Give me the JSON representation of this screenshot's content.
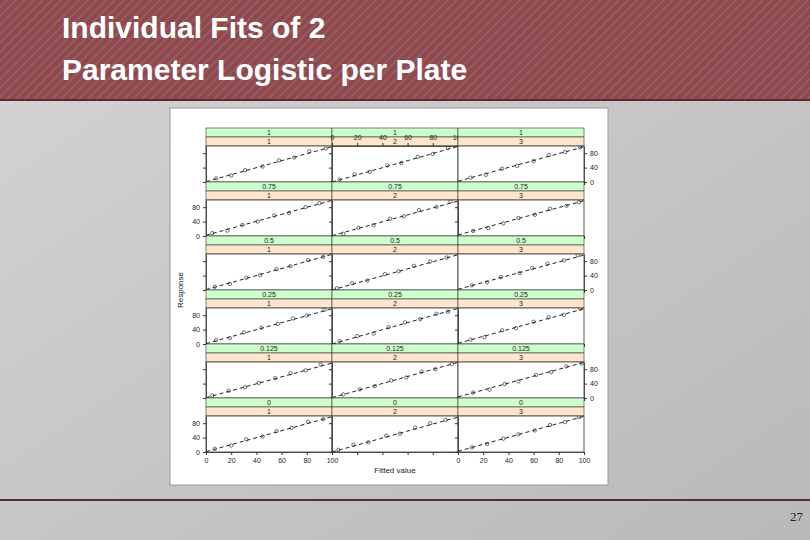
{
  "slide": {
    "title": "Individual Fits of 2 Parameter Logistic per Plate",
    "page": 27
  },
  "figure": {
    "x_label": "Fitted value",
    "y_label": "Response"
  },
  "chart_data": [
    {
      "type": "scatter",
      "title": "1",
      "subtitle": "1",
      "xlim": [
        0,
        100
      ],
      "ylim": [
        0,
        100
      ],
      "xticks": [
        0,
        20,
        40,
        60,
        80,
        100
      ],
      "yticks": [
        0,
        40,
        80
      ],
      "tick_labels": false,
      "series": [
        {
          "type": "scatter",
          "marker": "circle",
          "x": [
            8,
            20,
            31,
            45,
            58,
            70,
            82,
            95
          ],
          "values": [
            10,
            18,
            33,
            43,
            60,
            68,
            85,
            93
          ]
        },
        {
          "type": "line",
          "line_style": "dashed",
          "x": [
            0,
            100
          ],
          "values": [
            1,
            98
          ]
        }
      ]
    },
    {
      "type": "scatter",
      "title": "1",
      "subtitle": "2",
      "xlim": [
        0,
        100
      ],
      "ylim": [
        0,
        100
      ],
      "xticks": [
        0,
        20,
        40,
        60,
        80,
        100
      ],
      "yticks": [
        0,
        40,
        80
      ],
      "tick_labels": "x",
      "series": [
        {
          "type": "scatter",
          "marker": "circle",
          "x": [
            6,
            18,
            30,
            44,
            55,
            68,
            80,
            92
          ],
          "values": [
            7,
            21,
            28,
            46,
            53,
            70,
            78,
            95
          ]
        },
        {
          "type": "line",
          "line_style": "dashed",
          "x": [
            0,
            100
          ],
          "values": [
            0,
            99
          ]
        }
      ]
    },
    {
      "type": "scatter",
      "title": "1",
      "subtitle": "3",
      "xlim": [
        0,
        100
      ],
      "ylim": [
        0,
        100
      ],
      "xticks": [
        0,
        20,
        40,
        60,
        80,
        100
      ],
      "yticks": [
        0,
        40,
        80
      ],
      "tick_labels": "y",
      "series": [
        {
          "type": "scatter",
          "marker": "circle",
          "x": [
            10,
            22,
            35,
            47,
            60,
            72,
            85,
            97
          ],
          "values": [
            12,
            20,
            37,
            45,
            58,
            75,
            83,
            96
          ]
        },
        {
          "type": "line",
          "line_style": "dashed",
          "x": [
            0,
            100
          ],
          "values": [
            2,
            98
          ]
        }
      ]
    },
    {
      "type": "scatter",
      "title": "0.75",
      "subtitle": "1",
      "xlim": [
        0,
        100
      ],
      "ylim": [
        0,
        100
      ],
      "xticks": [
        0,
        20,
        40,
        60,
        80,
        100
      ],
      "yticks": [
        0,
        40,
        80
      ],
      "tick_labels": "y",
      "series": [
        {
          "type": "scatter",
          "marker": "circle",
          "x": [
            5,
            17,
            29,
            41,
            54,
            66,
            79,
            90
          ],
          "values": [
            8,
            15,
            31,
            40,
            57,
            64,
            80,
            91
          ]
        },
        {
          "type": "line",
          "line_style": "dashed",
          "x": [
            0,
            100
          ],
          "values": [
            2,
            99
          ]
        }
      ]
    },
    {
      "type": "scatter",
      "title": "0.75",
      "subtitle": "2",
      "xlim": [
        0,
        100
      ],
      "ylim": [
        0,
        100
      ],
      "xticks": [
        0,
        20,
        40,
        60,
        80,
        100
      ],
      "yticks": [
        0,
        40,
        80
      ],
      "tick_labels": false,
      "series": [
        {
          "type": "scatter",
          "marker": "circle",
          "x": [
            9,
            21,
            33,
            46,
            57,
            69,
            83,
            94
          ],
          "values": [
            6,
            23,
            30,
            48,
            55,
            72,
            81,
            96
          ]
        },
        {
          "type": "line",
          "line_style": "dashed",
          "x": [
            0,
            100
          ],
          "values": [
            1,
            97
          ]
        }
      ]
    },
    {
      "type": "scatter",
      "title": "0.75",
      "subtitle": "3",
      "xlim": [
        0,
        100
      ],
      "ylim": [
        0,
        100
      ],
      "xticks": [
        0,
        20,
        40,
        60,
        80,
        100
      ],
      "yticks": [
        0,
        40,
        80
      ],
      "tick_labels": false,
      "series": [
        {
          "type": "scatter",
          "marker": "circle",
          "x": [
            12,
            24,
            36,
            48,
            61,
            73,
            86,
            96
          ],
          "values": [
            14,
            22,
            35,
            50,
            59,
            76,
            84,
            94
          ]
        },
        {
          "type": "line",
          "line_style": "dashed",
          "x": [
            0,
            100
          ],
          "values": [
            3,
            98
          ]
        }
      ]
    },
    {
      "type": "scatter",
      "title": "0.5",
      "subtitle": "1",
      "xlim": [
        0,
        100
      ],
      "ylim": [
        0,
        100
      ],
      "xticks": [
        0,
        20,
        40,
        60,
        80,
        100
      ],
      "yticks": [
        0,
        40,
        80
      ],
      "tick_labels": false,
      "series": [
        {
          "type": "scatter",
          "marker": "circle",
          "x": [
            7,
            19,
            32,
            43,
            56,
            67,
            81,
            93
          ],
          "values": [
            9,
            17,
            34,
            41,
            58,
            66,
            83,
            92
          ]
        },
        {
          "type": "line",
          "line_style": "dashed",
          "x": [
            0,
            100
          ],
          "values": [
            1,
            99
          ]
        }
      ]
    },
    {
      "type": "scatter",
      "title": "0.5",
      "subtitle": "2",
      "xlim": [
        0,
        100
      ],
      "ylim": [
        0,
        100
      ],
      "xticks": [
        0,
        20,
        40,
        60,
        80,
        100
      ],
      "yticks": [
        0,
        40,
        80
      ],
      "tick_labels": false,
      "series": [
        {
          "type": "scatter",
          "marker": "circle",
          "x": [
            4,
            16,
            28,
            42,
            53,
            65,
            78,
            91
          ],
          "values": [
            5,
            19,
            26,
            44,
            52,
            67,
            79,
            90
          ]
        },
        {
          "type": "line",
          "line_style": "dashed",
          "x": [
            0,
            100
          ],
          "values": [
            0,
            98
          ]
        }
      ]
    },
    {
      "type": "scatter",
      "title": "0.5",
      "subtitle": "3",
      "xlim": [
        0,
        100
      ],
      "ylim": [
        0,
        100
      ],
      "xticks": [
        0,
        20,
        40,
        60,
        80,
        100
      ],
      "yticks": [
        0,
        40,
        80
      ],
      "tick_labels": "y",
      "series": [
        {
          "type": "scatter",
          "marker": "circle",
          "x": [
            11,
            23,
            34,
            49,
            59,
            71,
            84,
            95
          ],
          "values": [
            13,
            21,
            36,
            47,
            61,
            73,
            82,
            97
          ]
        },
        {
          "type": "line",
          "line_style": "dashed",
          "x": [
            0,
            100
          ],
          "values": [
            2,
            97
          ]
        }
      ]
    },
    {
      "type": "scatter",
      "title": "0.25",
      "subtitle": "1",
      "xlim": [
        0,
        100
      ],
      "ylim": [
        0,
        100
      ],
      "xticks": [
        0,
        20,
        40,
        60,
        80,
        100
      ],
      "yticks": [
        0,
        40,
        80
      ],
      "tick_labels": "y",
      "series": [
        {
          "type": "scatter",
          "marker": "circle",
          "x": [
            8,
            19,
            30,
            44,
            57,
            69,
            80,
            94
          ],
          "values": [
            11,
            16,
            32,
            45,
            56,
            71,
            79,
            95
          ]
        },
        {
          "type": "line",
          "line_style": "dashed",
          "x": [
            0,
            100
          ],
          "values": [
            1,
            98
          ]
        }
      ]
    },
    {
      "type": "scatter",
      "title": "0.25",
      "subtitle": "2",
      "xlim": [
        0,
        100
      ],
      "ylim": [
        0,
        100
      ],
      "xticks": [
        0,
        20,
        40,
        60,
        80,
        100
      ],
      "yticks": [
        0,
        40,
        80
      ],
      "tick_labels": false,
      "series": [
        {
          "type": "scatter",
          "marker": "circle",
          "x": [
            6,
            20,
            33,
            45,
            58,
            70,
            83,
            92
          ],
          "values": [
            8,
            22,
            29,
            47,
            60,
            69,
            84,
            90
          ]
        },
        {
          "type": "line",
          "line_style": "dashed",
          "x": [
            0,
            100
          ],
          "values": [
            0,
            99
          ]
        }
      ]
    },
    {
      "type": "scatter",
      "title": "0.25",
      "subtitle": "3",
      "xlim": [
        0,
        100
      ],
      "ylim": [
        0,
        100
      ],
      "xticks": [
        0,
        20,
        40,
        60,
        80,
        100
      ],
      "yticks": [
        0,
        40,
        80
      ],
      "tick_labels": false,
      "series": [
        {
          "type": "scatter",
          "marker": "circle",
          "x": [
            10,
            21,
            35,
            46,
            60,
            72,
            84,
            97
          ],
          "values": [
            12,
            19,
            38,
            44,
            62,
            74,
            81,
            98
          ]
        },
        {
          "type": "line",
          "line_style": "dashed",
          "x": [
            0,
            100
          ],
          "values": [
            2,
            98
          ]
        }
      ]
    },
    {
      "type": "scatter",
      "title": "0.125",
      "subtitle": "1",
      "xlim": [
        0,
        100
      ],
      "ylim": [
        0,
        100
      ],
      "xticks": [
        0,
        20,
        40,
        60,
        80,
        100
      ],
      "yticks": [
        0,
        40,
        80
      ],
      "tick_labels": false,
      "series": [
        {
          "type": "scatter",
          "marker": "circle",
          "x": [
            5,
            18,
            31,
            42,
            55,
            67,
            79,
            91
          ],
          "values": [
            7,
            20,
            30,
            42,
            55,
            69,
            77,
            93
          ]
        },
        {
          "type": "line",
          "line_style": "dashed",
          "x": [
            0,
            100
          ],
          "values": [
            1,
            97
          ]
        }
      ]
    },
    {
      "type": "scatter",
      "title": "0.125",
      "subtitle": "2",
      "xlim": [
        0,
        100
      ],
      "ylim": [
        0,
        100
      ],
      "xticks": [
        0,
        20,
        40,
        60,
        80,
        100
      ],
      "yticks": [
        0,
        40,
        80
      ],
      "tick_labels": false,
      "series": [
        {
          "type": "scatter",
          "marker": "circle",
          "x": [
            9,
            22,
            34,
            47,
            59,
            71,
            82,
            95
          ],
          "values": [
            10,
            24,
            33,
            49,
            57,
            73,
            80,
            94
          ]
        },
        {
          "type": "line",
          "line_style": "dashed",
          "x": [
            0,
            100
          ],
          "values": [
            1,
            99
          ]
        }
      ]
    },
    {
      "type": "scatter",
      "title": "0.125",
      "subtitle": "3",
      "xlim": [
        0,
        100
      ],
      "ylim": [
        0,
        100
      ],
      "xticks": [
        0,
        20,
        40,
        60,
        80,
        100
      ],
      "yticks": [
        0,
        40,
        80
      ],
      "tick_labels": "y",
      "series": [
        {
          "type": "scatter",
          "marker": "circle",
          "x": [
            12,
            25,
            37,
            48,
            62,
            74,
            86,
            98
          ],
          "values": [
            15,
            23,
            39,
            46,
            64,
            72,
            88,
            96
          ]
        },
        {
          "type": "line",
          "line_style": "dashed",
          "x": [
            0,
            100
          ],
          "values": [
            3,
            99
          ]
        }
      ]
    },
    {
      "type": "scatter",
      "title": "0",
      "subtitle": "1",
      "xlim": [
        0,
        100
      ],
      "ylim": [
        0,
        100
      ],
      "xticks": [
        0,
        20,
        40,
        60,
        80,
        100
      ],
      "yticks": [
        0,
        40,
        80
      ],
      "tick_labels": true,
      "series": [
        {
          "type": "scatter",
          "marker": "circle",
          "x": [
            7,
            20,
            32,
            45,
            56,
            68,
            81,
            93
          ],
          "values": [
            9,
            18,
            35,
            43,
            58,
            67,
            84,
            91
          ]
        },
        {
          "type": "line",
          "line_style": "dashed",
          "x": [
            0,
            100
          ],
          "values": [
            1,
            98
          ]
        }
      ]
    },
    {
      "type": "scatter",
      "title": "0",
      "subtitle": "2",
      "xlim": [
        0,
        100
      ],
      "ylim": [
        0,
        100
      ],
      "xticks": [
        0,
        20,
        40,
        60,
        80,
        100
      ],
      "yticks": [
        0,
        40,
        80
      ],
      "tick_labels": false,
      "series": [
        {
          "type": "scatter",
          "marker": "circle",
          "x": [
            5,
            17,
            29,
            43,
            54,
            66,
            78,
            90
          ],
          "values": [
            6,
            20,
            27,
            45,
            51,
            68,
            80,
            89
          ]
        },
        {
          "type": "line",
          "line_style": "dashed",
          "x": [
            0,
            100
          ],
          "values": [
            0,
            97
          ]
        }
      ]
    },
    {
      "type": "scatter",
      "title": "0",
      "subtitle": "3",
      "xlim": [
        0,
        100
      ],
      "ylim": [
        0,
        100
      ],
      "xticks": [
        0,
        20,
        40,
        60,
        80,
        100
      ],
      "yticks": [
        0,
        40,
        80
      ],
      "tick_labels": "x",
      "series": [
        {
          "type": "scatter",
          "marker": "circle",
          "x": [
            11,
            23,
            36,
            48,
            61,
            73,
            85,
            96
          ],
          "values": [
            13,
            22,
            37,
            49,
            60,
            75,
            83,
            97
          ]
        },
        {
          "type": "line",
          "line_style": "dashed",
          "x": [
            0,
            100
          ],
          "values": [
            2,
            99
          ]
        }
      ]
    }
  ]
}
